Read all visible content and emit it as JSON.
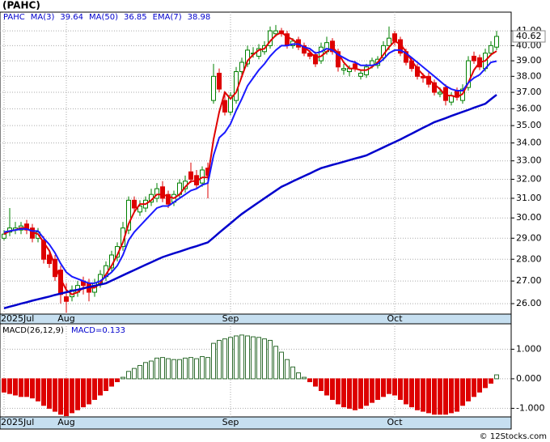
{
  "chart_data": [
    {
      "type": "candlestick",
      "title": "(PAHC)",
      "symbol": "PAHC",
      "categories": [
        "2025Jul",
        null,
        null,
        null,
        null,
        null,
        null,
        null,
        null,
        null,
        null,
        "Aug",
        null,
        null,
        null,
        null,
        null,
        null,
        null,
        null,
        null,
        null,
        null,
        null,
        null,
        null,
        null,
        null,
        null,
        null,
        null,
        null,
        null,
        null,
        null,
        null,
        null,
        null,
        null,
        null,
        "Sep",
        null,
        null,
        null,
        null,
        null,
        null,
        null,
        null,
        null,
        null,
        null,
        null,
        null,
        null,
        null,
        null,
        null,
        null,
        null,
        null,
        null,
        null,
        null,
        null,
        null,
        null,
        null,
        null,
        "Oct",
        null,
        null,
        null,
        null,
        null,
        null,
        null,
        null,
        null,
        null,
        null,
        null,
        null,
        null,
        null,
        null,
        null,
        null
      ],
      "open": [
        29.0,
        29.3,
        29.4,
        29.4,
        29.7,
        29.5,
        29.0,
        28.9,
        28.2,
        28.0,
        27.5,
        26.3,
        26.3,
        26.5,
        27.0,
        26.9,
        26.5,
        26.9,
        27.2,
        27.6,
        28.1,
        28.6,
        29.4,
        30.9,
        30.3,
        30.5,
        30.8,
        31.0,
        31.6,
        31.2,
        30.8,
        31.2,
        31.5,
        32.4,
        32.2,
        31.8,
        32.6,
        36.5,
        38.2,
        36.5,
        35.8,
        36.5,
        38.3,
        38.8,
        39.5,
        39.3,
        39.6,
        40.0,
        40.8,
        41.0,
        40.8,
        40.0,
        40.4,
        40.0,
        39.5,
        39.4,
        39.0,
        39.6,
        40.3,
        39.6,
        38.4,
        38.3,
        38.8,
        38.0,
        38.1,
        38.7,
        38.7,
        39.2,
        40.0,
        40.8,
        40.4,
        39.6,
        39.0,
        38.6,
        38.0,
        38.0,
        37.6,
        36.9,
        37.3,
        36.4,
        37.1,
        36.5,
        37.3,
        39.3,
        39.2,
        38.5,
        39.5,
        39.9
      ],
      "high": [
        29.4,
        30.5,
        29.8,
        29.8,
        29.9,
        29.7,
        29.5,
        29.1,
        28.4,
        28.2,
        27.7,
        26.9,
        26.8,
        27.0,
        27.2,
        27.1,
        27.1,
        27.5,
        27.9,
        28.4,
        28.8,
        29.8,
        31.1,
        31.1,
        30.9,
        31.1,
        31.5,
        31.8,
        31.9,
        31.4,
        31.4,
        32.0,
        32.2,
        32.9,
        32.5,
        32.7,
        32.9,
        38.8,
        38.5,
        37.0,
        37.0,
        38.6,
        39.2,
        40.0,
        39.9,
        40.1,
        40.3,
        41.3,
        41.4,
        41.2,
        41.0,
        40.5,
        40.6,
        40.2,
        39.7,
        39.6,
        40.2,
        40.6,
        40.5,
        39.8,
        38.8,
        38.7,
        39.0,
        38.4,
        38.8,
        39.2,
        39.3,
        40.3,
        41.3,
        41.0,
        40.6,
        39.8,
        39.2,
        38.8,
        38.2,
        38.3,
        37.8,
        37.3,
        37.5,
        37.0,
        37.3,
        37.5,
        39.3,
        39.6,
        39.4,
        39.8,
        40.3,
        41.0
      ],
      "low": [
        28.9,
        29.1,
        29.2,
        29.2,
        29.2,
        28.8,
        28.8,
        27.8,
        27.6,
        27.0,
        26.0,
        25.6,
        26.1,
        26.3,
        26.4,
        26.1,
        26.3,
        26.7,
        27.0,
        27.4,
        27.9,
        28.4,
        29.2,
        30.3,
        30.1,
        30.3,
        30.6,
        30.8,
        30.8,
        30.5,
        30.6,
        31.0,
        31.3,
        31.8,
        31.5,
        31.6,
        31.0,
        36.3,
        37.0,
        35.6,
        35.6,
        36.3,
        38.0,
        38.6,
        39.2,
        39.1,
        39.4,
        39.8,
        40.6,
        40.6,
        39.8,
        39.8,
        39.7,
        39.3,
        39.1,
        38.6,
        38.8,
        39.4,
        39.4,
        38.3,
        38.1,
        38.0,
        38.3,
        37.8,
        37.9,
        38.5,
        38.5,
        39.0,
        39.7,
        40.0,
        39.3,
        38.7,
        38.3,
        37.8,
        37.6,
        37.3,
        36.8,
        36.7,
        36.2,
        36.2,
        36.5,
        36.3,
        37.1,
        38.8,
        38.4,
        38.3,
        39.3,
        39.7
      ],
      "close": [
        29.2,
        29.5,
        29.5,
        29.6,
        29.4,
        29.0,
        29.3,
        28.0,
        27.8,
        27.2,
        26.4,
        26.1,
        26.6,
        26.8,
        26.8,
        26.5,
        26.9,
        27.3,
        27.7,
        28.2,
        28.6,
        29.5,
        30.9,
        30.5,
        30.6,
        30.9,
        31.2,
        31.5,
        31.0,
        30.7,
        31.2,
        31.8,
        31.9,
        32.0,
        31.7,
        32.5,
        32.2,
        38.0,
        37.2,
        35.8,
        36.8,
        38.3,
        38.9,
        39.7,
        39.5,
        39.8,
        40.0,
        41.0,
        41.0,
        40.8,
        40.0,
        40.3,
        39.9,
        39.5,
        39.3,
        38.8,
        39.9,
        40.2,
        39.6,
        38.6,
        38.5,
        38.5,
        38.5,
        38.2,
        38.6,
        39.0,
        39.1,
        40.0,
        40.5,
        40.3,
        39.5,
        38.9,
        38.5,
        38.0,
        37.9,
        37.5,
        37.0,
        37.0,
        36.5,
        36.8,
        36.7,
        37.2,
        39.0,
        39.0,
        38.6,
        39.5,
        40.0,
        40.62
      ],
      "up_color": "#008000",
      "down_color": "#dd0000",
      "series": [
        {
          "name": "MA(3)",
          "legend_value": 39.64,
          "color": "#e00000",
          "values": [
            29.2,
            29.35,
            29.4,
            29.5,
            29.5,
            29.3,
            29.2,
            28.8,
            28.4,
            27.7,
            27.1,
            26.6,
            26.4,
            26.5,
            26.7,
            26.7,
            26.7,
            26.9,
            27.3,
            27.7,
            28.2,
            28.8,
            29.7,
            30.3,
            30.7,
            30.7,
            30.9,
            31.2,
            31.2,
            31.1,
            31.0,
            31.2,
            31.6,
            31.9,
            31.9,
            32.1,
            32.1,
            34.2,
            35.8,
            37.0,
            36.6,
            37.0,
            38.0,
            39.0,
            39.4,
            39.7,
            39.8,
            40.3,
            40.7,
            40.9,
            40.6,
            40.4,
            40.1,
            39.9,
            39.6,
            39.2,
            39.3,
            39.6,
            39.9,
            39.5,
            38.9,
            38.5,
            38.5,
            38.4,
            38.4,
            38.6,
            38.9,
            39.4,
            39.9,
            40.3,
            40.1,
            39.6,
            39.0,
            38.5,
            38.1,
            37.8,
            37.5,
            37.2,
            36.8,
            36.8,
            36.7,
            36.9,
            37.6,
            38.4,
            38.9,
            39.0,
            39.4,
            39.64
          ]
        },
        {
          "name": "MA(50)",
          "legend_value": 36.85,
          "color": "#0000cc",
          "values": [
            25.8,
            25.87,
            25.93,
            26.0,
            26.06,
            26.13,
            26.19,
            26.25,
            26.31,
            26.38,
            26.44,
            26.5,
            26.56,
            26.61,
            26.67,
            26.73,
            26.79,
            26.84,
            26.9,
            27.02,
            27.14,
            27.26,
            27.38,
            27.5,
            27.62,
            27.74,
            27.86,
            27.98,
            28.1,
            28.19,
            28.28,
            28.36,
            28.45,
            28.54,
            28.62,
            28.71,
            28.8,
            29.03,
            29.27,
            29.5,
            29.73,
            29.97,
            30.2,
            30.4,
            30.6,
            30.8,
            31.0,
            31.2,
            31.4,
            31.6,
            31.74,
            31.89,
            32.03,
            32.17,
            32.31,
            32.46,
            32.6,
            32.69,
            32.78,
            32.86,
            32.95,
            33.04,
            33.13,
            33.21,
            33.3,
            33.45,
            33.6,
            33.75,
            33.9,
            34.05,
            34.2,
            34.37,
            34.53,
            34.7,
            34.87,
            35.03,
            35.2,
            35.32,
            35.44,
            35.57,
            35.69,
            35.81,
            35.93,
            36.06,
            36.18,
            36.3,
            36.58,
            36.85
          ]
        },
        {
          "name": "EMA(7)",
          "legend_value": 38.98,
          "color": "#1a1aff",
          "values": [
            29.3,
            29.35,
            29.4,
            29.45,
            29.45,
            29.35,
            29.35,
            29.0,
            28.7,
            28.3,
            27.8,
            27.4,
            27.2,
            27.1,
            27.0,
            26.9,
            26.9,
            27.0,
            27.2,
            27.4,
            27.7,
            28.2,
            28.9,
            29.3,
            29.6,
            29.9,
            30.2,
            30.5,
            30.6,
            30.6,
            30.8,
            31.0,
            31.2,
            31.4,
            31.5,
            31.7,
            31.8,
            33.3,
            34.3,
            34.6,
            35.1,
            35.9,
            36.6,
            37.4,
            37.9,
            38.4,
            38.8,
            39.3,
            39.7,
            40.0,
            40.0,
            40.1,
            40.1,
            39.9,
            39.8,
            39.5,
            39.6,
            39.8,
            39.7,
            39.4,
            39.2,
            39.0,
            38.9,
            38.7,
            38.7,
            38.7,
            38.8,
            39.1,
            39.5,
            39.7,
            39.7,
            39.5,
            39.2,
            38.9,
            38.6,
            38.3,
            38.0,
            37.7,
            37.4,
            37.2,
            37.1,
            37.1,
            37.6,
            37.9,
            38.1,
            38.5,
            38.9,
            38.98
          ]
        }
      ],
      "ylim": [
        25.55,
        42.3
      ],
      "log_scale": true,
      "grid": true,
      "yticks": [
        {
          "value": 26,
          "label": "26.00"
        },
        {
          "value": 27,
          "label": "27.00"
        },
        {
          "value": 28,
          "label": "28.00"
        },
        {
          "value": 29,
          "label": "29.00"
        },
        {
          "value": 30,
          "label": "30.00"
        },
        {
          "value": 31,
          "label": "31.00"
        },
        {
          "value": 32,
          "label": "32.00"
        },
        {
          "value": 33,
          "label": "33.00"
        },
        {
          "value": 34,
          "label": "34.00"
        },
        {
          "value": 35,
          "label": "35.00"
        },
        {
          "value": 36,
          "label": "36.00"
        },
        {
          "value": 37,
          "label": "37.00"
        },
        {
          "value": 38,
          "label": "38.00"
        },
        {
          "value": 39,
          "label": "39.00"
        },
        {
          "value": 40,
          "label": "40.00"
        },
        {
          "value": 41,
          "label": "41.00"
        }
      ]
    },
    {
      "type": "bar",
      "title": "MACD(26,12,9)",
      "label": "MACD=0.133",
      "values": [
        -0.45,
        -0.5,
        -0.55,
        -0.6,
        -0.6,
        -0.65,
        -0.75,
        -0.9,
        -1.0,
        -1.1,
        -1.2,
        -1.25,
        -1.15,
        -1.05,
        -0.95,
        -0.85,
        -0.7,
        -0.55,
        -0.4,
        -0.25,
        -0.1,
        0.05,
        0.25,
        0.35,
        0.45,
        0.55,
        0.6,
        0.7,
        0.72,
        0.68,
        0.65,
        0.65,
        0.7,
        0.72,
        0.68,
        0.75,
        0.72,
        1.2,
        1.3,
        1.35,
        1.4,
        1.45,
        1.48,
        1.45,
        1.42,
        1.4,
        1.35,
        1.3,
        1.1,
        0.9,
        0.65,
        0.4,
        0.2,
        0.05,
        -0.1,
        -0.25,
        -0.4,
        -0.55,
        -0.7,
        -0.85,
        -0.95,
        -1.0,
        -1.05,
        -1.0,
        -0.9,
        -0.8,
        -0.7,
        -0.6,
        -0.5,
        -0.55,
        -0.7,
        -0.85,
        -0.95,
        -1.05,
        -1.1,
        -1.15,
        -1.2,
        -1.2,
        -1.2,
        -1.15,
        -1.1,
        -0.9,
        -0.75,
        -0.6,
        -0.45,
        -0.3,
        -0.15,
        0.133
      ],
      "up_color": "#2e6b2e",
      "down_color": "#dd0000",
      "ylim": [
        -1.29,
        1.86
      ],
      "grid": true,
      "yticks": [
        {
          "value": -1,
          "label": "-1.000"
        },
        {
          "value": 0,
          "label": "0.000"
        },
        {
          "value": 1,
          "label": "1.000"
        }
      ]
    }
  ],
  "copyright": "© 12Stocks.com"
}
